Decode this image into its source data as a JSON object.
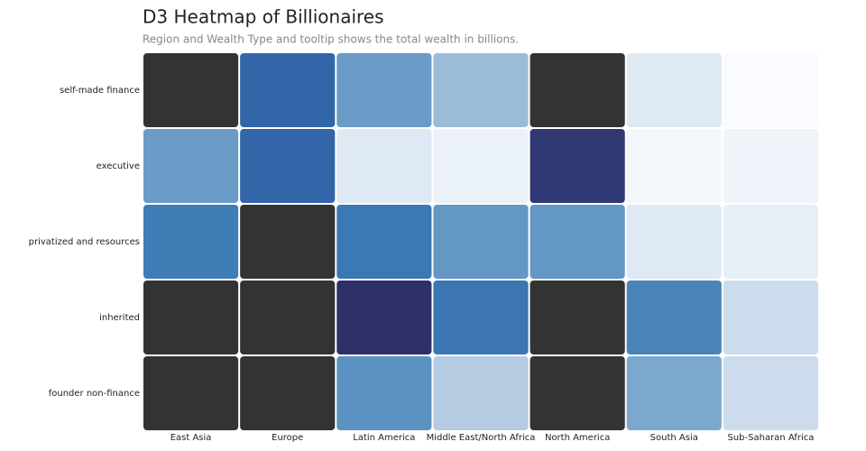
{
  "chart_data": {
    "type": "heatmap",
    "title": "D3 Heatmap of Billionaires",
    "subtitle": "Region and Wealth Type and tooltip shows the total wealth in billions.",
    "x": [
      "East Asia",
      "Europe",
      "Latin America",
      "Middle East/North Africa",
      "North America",
      "South Asia",
      "Sub-Saharan Africa"
    ],
    "y": [
      "self-made finance",
      "executive",
      "privatized and resources",
      "inherited",
      "founder non-finance"
    ],
    "values": [
      [
        null,
        225,
        120,
        80,
        null,
        25,
        3
      ],
      [
        120,
        225,
        25,
        15,
        285,
        8,
        12
      ],
      [
        180,
        null,
        190,
        130,
        130,
        25,
        18
      ],
      [
        null,
        null,
        295,
        195,
        null,
        165,
        40
      ],
      [
        null,
        null,
        140,
        60,
        null,
        105,
        40
      ]
    ],
    "zlim": [
      0,
      300
    ],
    "color_scale": [
      "#fdfeff",
      "#b4cbe2",
      "#6a9cc7",
      "#3f7db6",
      "#2f5da4",
      "#2f2b63"
    ],
    "null_color": "#333333"
  }
}
